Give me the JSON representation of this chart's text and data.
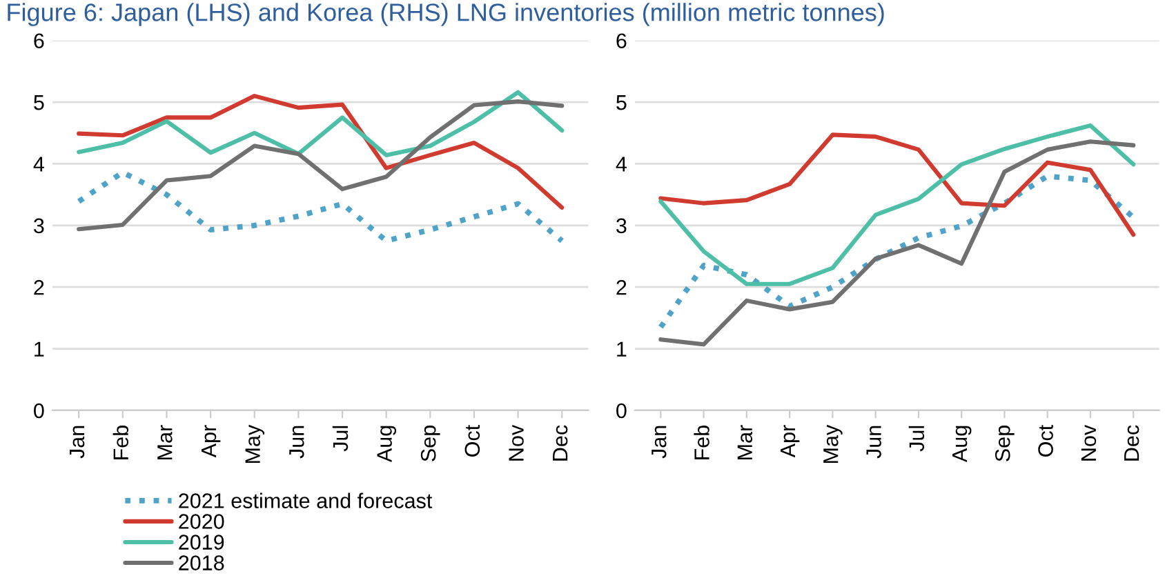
{
  "chart_data": [
    {
      "type": "line",
      "title": "Figure 6: Japan (LHS) and Korea (RHS) LNG inventories (million metric tonnes)",
      "categories": [
        "Jan",
        "Feb",
        "Mar",
        "Apr",
        "May",
        "Jun",
        "Jul",
        "Aug",
        "Sep",
        "Oct",
        "Nov",
        "Dec"
      ],
      "ylim": [
        0,
        6
      ],
      "yticks": [
        0,
        1,
        2,
        3,
        4,
        5,
        6
      ],
      "grid": "y",
      "legend": "bottom left",
      "series": [
        {
          "name": "2021 estimate and forecast",
          "color": "#4fa3c9",
          "line_style": "dotted",
          "values": [
            3.39,
            3.86,
            3.5,
            2.93,
            3.0,
            3.15,
            3.35,
            2.75,
            2.93,
            3.14,
            3.35,
            2.75
          ]
        },
        {
          "name": "2020",
          "color": "#d03a2f",
          "line_style": "solid",
          "values": [
            4.49,
            4.46,
            4.75,
            4.75,
            5.1,
            4.91,
            4.96,
            3.93,
            4.14,
            4.34,
            3.93,
            3.29
          ]
        },
        {
          "name": "2019",
          "color": "#4dbfa6",
          "line_style": "solid",
          "values": [
            4.19,
            4.34,
            4.69,
            4.18,
            4.5,
            4.16,
            4.75,
            4.14,
            4.29,
            4.68,
            5.16,
            4.54
          ]
        },
        {
          "name": "2018",
          "color": "#707070",
          "line_style": "solid",
          "values": [
            2.94,
            3.01,
            3.73,
            3.8,
            4.29,
            4.16,
            3.59,
            3.79,
            4.43,
            4.95,
            5.01,
            4.94
          ]
        }
      ]
    },
    {
      "type": "line",
      "categories": [
        "Jan",
        "Feb",
        "Mar",
        "Apr",
        "May",
        "Jun",
        "Jul",
        "Aug",
        "Sep",
        "Oct",
        "Nov",
        "Dec"
      ],
      "ylim": [
        0,
        6
      ],
      "yticks": [
        0,
        1,
        2,
        3,
        4,
        5,
        6
      ],
      "grid": "y",
      "series": [
        {
          "color": "#4fa3c9",
          "line_style": "dotted",
          "values": [
            1.35,
            2.35,
            2.2,
            1.69,
            2.0,
            2.45,
            2.8,
            2.99,
            3.36,
            3.8,
            3.73,
            3.13
          ]
        },
        {
          "color": "#d03a2f",
          "line_style": "solid",
          "values": [
            3.44,
            3.36,
            3.41,
            3.67,
            4.47,
            4.44,
            4.23,
            3.36,
            3.32,
            4.02,
            3.9,
            2.85
          ]
        },
        {
          "color": "#4dbfa6",
          "line_style": "solid",
          "values": [
            3.39,
            2.58,
            2.05,
            2.05,
            2.31,
            3.17,
            3.43,
            3.99,
            4.24,
            4.44,
            4.62,
            3.99
          ]
        },
        {
          "color": "#707070",
          "line_style": "solid",
          "values": [
            1.15,
            1.07,
            1.78,
            1.64,
            1.76,
            2.46,
            2.68,
            2.38,
            3.87,
            4.23,
            4.36,
            4.3
          ]
        }
      ]
    }
  ]
}
